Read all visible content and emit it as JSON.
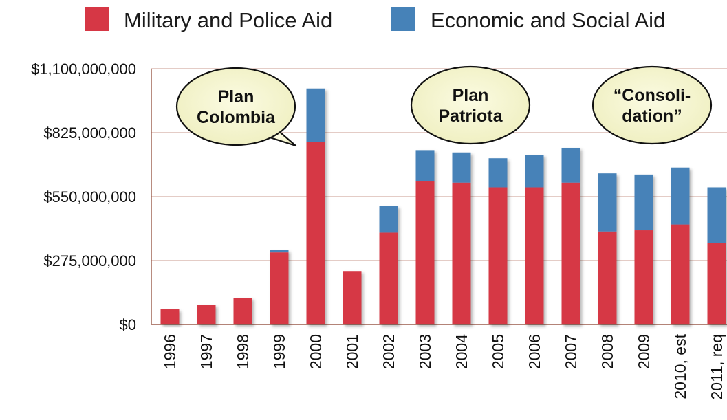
{
  "chart_data": {
    "type": "bar",
    "stacked": true,
    "categories": [
      "1996",
      "1997",
      "1998",
      "1999",
      "2000",
      "2001",
      "2002",
      "2003",
      "2004",
      "2005",
      "2006",
      "2007",
      "2008",
      "2009",
      "2010, est",
      "2011, req"
    ],
    "series": [
      {
        "name": "Military and Police Aid",
        "color": "#d63745",
        "values": [
          65000000,
          85000000,
          115000000,
          310000000,
          785000000,
          230000000,
          395000000,
          615000000,
          610000000,
          590000000,
          590000000,
          610000000,
          400000000,
          405000000,
          430000000,
          350000000
        ]
      },
      {
        "name": "Economic and Social Aid",
        "color": "#4682b8",
        "values": [
          0,
          0,
          0,
          10000000,
          230000000,
          0,
          115000000,
          135000000,
          130000000,
          125000000,
          140000000,
          150000000,
          250000000,
          240000000,
          245000000,
          240000000
        ]
      }
    ],
    "ylim": [
      0,
      1100000000
    ],
    "yticks": [
      0,
      275000000,
      550000000,
      825000000,
      1100000000
    ],
    "ytick_labels": [
      "$0",
      "$275,000,000",
      "$550,000,000",
      "$825,000,000",
      "$1,100,000,000"
    ],
    "grid": true,
    "legend_position": "top",
    "annotations": [
      {
        "lines": [
          "Plan",
          "Colombia"
        ],
        "category": "1998"
      },
      {
        "lines": [
          "Plan",
          "Patriota"
        ],
        "category": "2004"
      },
      {
        "lines": [
          "“Consoli-",
          "dation”"
        ],
        "category": "2009"
      }
    ]
  }
}
